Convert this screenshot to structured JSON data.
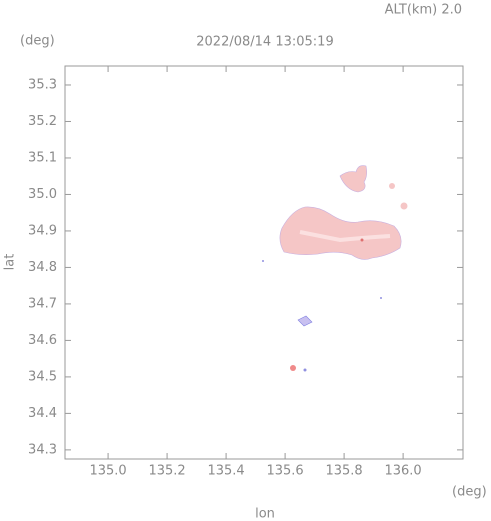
{
  "chart_data": {
    "type": "map",
    "title": "2022/08/14 13:05:19",
    "subtitle": "ALT(km) 2.0",
    "x_label": "lon",
    "y_label": "lat",
    "x_unit": "(deg)",
    "y_unit": "(deg)",
    "xlim": [
      134.854,
      136.203
    ],
    "ylim": [
      34.275,
      35.352
    ],
    "xticks": [
      {
        "value": 135,
        "label": "135.0"
      },
      135.2,
      135.4,
      135.6,
      135.8,
      {
        "value": 136,
        "label": "136.0"
      }
    ],
    "yticks": [
      34.3,
      34.4,
      34.5,
      34.6,
      34.7,
      34.8,
      34.9,
      {
        "value": 35,
        "label": "35.0"
      },
      35.1,
      35.2,
      35.3
    ]
  }
}
